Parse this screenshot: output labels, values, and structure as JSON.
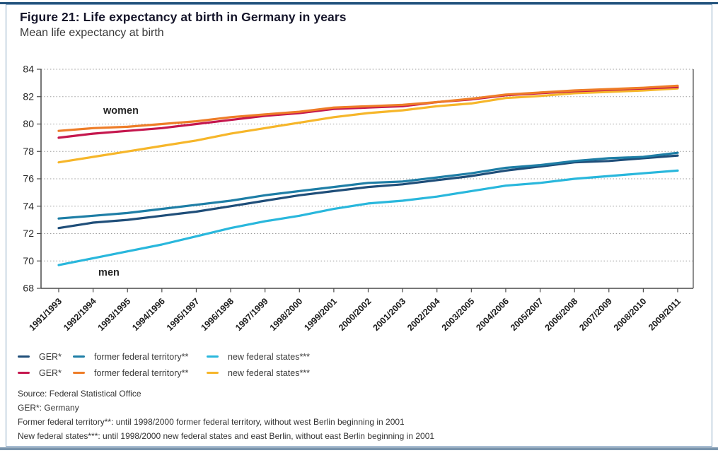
{
  "figure": {
    "title": "Figure 21: Life expectancy at birth in Germany in years",
    "subtitle": "Mean life expectancy at birth"
  },
  "chart_data": {
    "type": "line",
    "title": "Figure 21: Life expectancy at birth in Germany in years",
    "subtitle": "Mean life expectancy at birth",
    "xlabel": "",
    "ylabel": "",
    "ylim": [
      68,
      84
    ],
    "yticks": [
      68,
      70,
      72,
      74,
      76,
      78,
      80,
      82,
      84
    ],
    "grid": "horizontal-dotted",
    "legend_position": "bottom-left-two-rows",
    "categories": [
      "1991/1993",
      "1992/1994",
      "1993/1995",
      "1994/1996",
      "1995/1997",
      "1996/1998",
      "1997/1999",
      "1998/2000",
      "1999/2001",
      "2000/2002",
      "2001/2003",
      "2002/2004",
      "2003/2005",
      "2004/2006",
      "2005/2007",
      "2006/2008",
      "2007/2009",
      "2008/2010",
      "2009/2011"
    ],
    "series": [
      {
        "key": "ger-men",
        "name": "GER*",
        "group": "men",
        "color": "#1f4e79",
        "z": 2,
        "values": [
          72.4,
          72.8,
          73.0,
          73.3,
          73.6,
          74.0,
          74.4,
          74.8,
          75.1,
          75.4,
          75.6,
          75.9,
          76.2,
          76.6,
          76.9,
          77.2,
          77.3,
          77.5,
          77.7
        ]
      },
      {
        "key": "former-territory-men",
        "name": "former federal territory**",
        "group": "men",
        "color": "#1e7ea6",
        "z": 3,
        "values": [
          73.1,
          73.3,
          73.5,
          73.8,
          74.1,
          74.4,
          74.8,
          75.1,
          75.4,
          75.7,
          75.8,
          76.1,
          76.4,
          76.8,
          77.0,
          77.3,
          77.5,
          77.6,
          77.9
        ]
      },
      {
        "key": "new-states-men",
        "name": "new federal states***",
        "group": "men",
        "color": "#29b7dc",
        "z": 1,
        "values": [
          69.7,
          70.2,
          70.7,
          71.2,
          71.8,
          72.4,
          72.9,
          73.3,
          73.8,
          74.2,
          74.4,
          74.7,
          75.1,
          75.5,
          75.7,
          76.0,
          76.2,
          76.4,
          76.6
        ]
      },
      {
        "key": "ger-women",
        "name": "GER*",
        "group": "women",
        "color": "#c5174e",
        "z": 5,
        "values": [
          79.0,
          79.3,
          79.5,
          79.7,
          80.0,
          80.3,
          80.6,
          80.8,
          81.1,
          81.2,
          81.3,
          81.6,
          81.8,
          82.1,
          82.25,
          82.4,
          82.5,
          82.6,
          82.7
        ]
      },
      {
        "key": "former-territory-women",
        "name": "former federal territory**",
        "group": "women",
        "color": "#ee7d28",
        "z": 6,
        "values": [
          79.5,
          79.7,
          79.8,
          80.0,
          80.2,
          80.5,
          80.7,
          80.9,
          81.2,
          81.3,
          81.4,
          81.6,
          81.85,
          82.15,
          82.3,
          82.45,
          82.55,
          82.65,
          82.8
        ]
      },
      {
        "key": "new-states-women",
        "name": "new federal states***",
        "group": "women",
        "color": "#f6b62a",
        "z": 4,
        "values": [
          77.2,
          77.6,
          78.0,
          78.4,
          78.8,
          79.3,
          79.7,
          80.1,
          80.5,
          80.8,
          81.0,
          81.3,
          81.5,
          81.9,
          82.05,
          82.25,
          82.35,
          82.45,
          82.6
        ]
      }
    ],
    "annotations": [
      {
        "text": "women",
        "x_index": 1.81,
        "y": 81.0
      },
      {
        "text": "men",
        "x_index": 1.46,
        "y": 69.2
      }
    ]
  },
  "legend": {
    "rows": [
      [
        {
          "label": "GER*",
          "color": "#1f4e79"
        },
        {
          "label": "former federal territory**",
          "color": "#1e7ea6"
        },
        {
          "label": "new federal states***",
          "color": "#29b7dc"
        }
      ],
      [
        {
          "label": "GER*",
          "color": "#c5174e"
        },
        {
          "label": "former federal territory**",
          "color": "#ee7d28"
        },
        {
          "label": "new federal states***",
          "color": "#f6b62a"
        }
      ]
    ]
  },
  "footnotes": [
    "Source: Federal Statistical Office",
    "GER*: Germany",
    "Former federal territory**: until 1998/2000 former federal territory, without west Berlin beginning in 2001",
    "New federal states***: until 1998/2000 new federal states and east Berlin, without east Berlin beginning in 2001"
  ]
}
